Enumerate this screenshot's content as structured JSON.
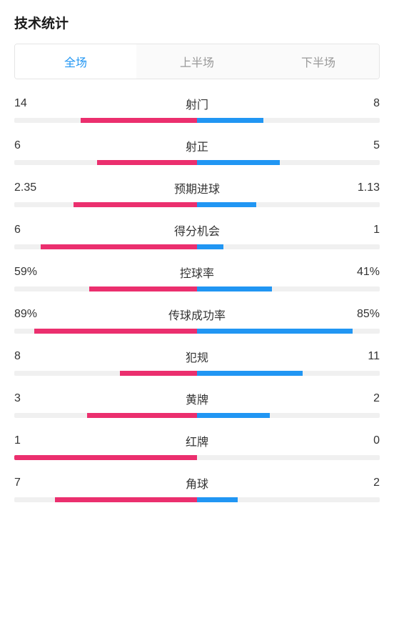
{
  "title": "技术统计",
  "tabs": [
    {
      "label": "全场",
      "active": true
    },
    {
      "label": "上半场",
      "active": false
    },
    {
      "label": "下半场",
      "active": false
    }
  ],
  "colors": {
    "left_bar": "#eb2f6e",
    "right_bar": "#2196f3",
    "bar_bg": "#f0f0f0",
    "active_tab": "#2196f3",
    "inactive_tab": "#999999",
    "text": "#333333"
  },
  "stats": [
    {
      "label": "射门",
      "left_value": "14",
      "right_value": "8",
      "left_pct": 63.6,
      "right_pct": 36.4
    },
    {
      "label": "射正",
      "left_value": "6",
      "right_value": "5",
      "left_pct": 54.5,
      "right_pct": 45.5
    },
    {
      "label": "预期进球",
      "left_value": "2.35",
      "right_value": "1.13",
      "left_pct": 67.5,
      "right_pct": 32.5
    },
    {
      "label": "得分机会",
      "left_value": "6",
      "right_value": "1",
      "left_pct": 85.7,
      "right_pct": 14.3
    },
    {
      "label": "控球率",
      "left_value": "59%",
      "right_value": "41%",
      "left_pct": 59,
      "right_pct": 41
    },
    {
      "label": "传球成功率",
      "left_value": "89%",
      "right_value": "85%",
      "left_pct": 89,
      "right_pct": 85
    },
    {
      "label": "犯规",
      "left_value": "8",
      "right_value": "11",
      "left_pct": 42.1,
      "right_pct": 57.9
    },
    {
      "label": "黄牌",
      "left_value": "3",
      "right_value": "2",
      "left_pct": 60,
      "right_pct": 40
    },
    {
      "label": "红牌",
      "left_value": "1",
      "right_value": "0",
      "left_pct": 100,
      "right_pct": 0
    },
    {
      "label": "角球",
      "left_value": "7",
      "right_value": "2",
      "left_pct": 77.8,
      "right_pct": 22.2
    }
  ]
}
